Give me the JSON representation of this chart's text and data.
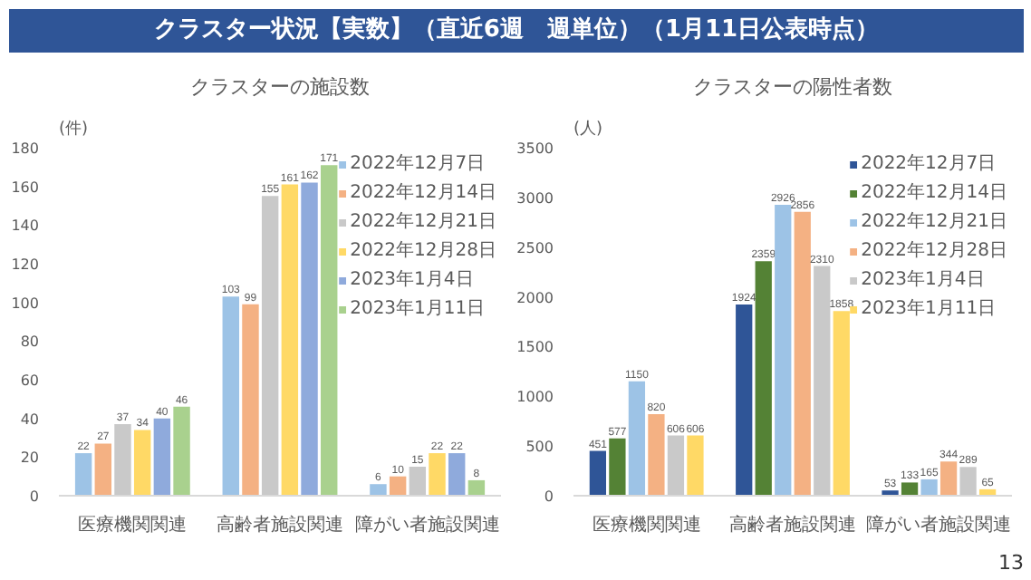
{
  "chart_data": [
    {
      "type": "bar",
      "title": "クラスターの施設数",
      "ylabel": "(件)",
      "annotations": [
        "クラスター状況【実数】（直近6週　週単位）（1月11日公表時点）"
      ],
      "categories": [
        "医療機関関連",
        "高齢者施設関連",
        "障がい者施設関連"
      ],
      "series": [
        {
          "name": "2022年12月7日",
          "color": "#9dc3e6",
          "values": [
            22,
            103,
            6
          ]
        },
        {
          "name": "2022年12月14日",
          "color": "#f4b183",
          "values": [
            27,
            99,
            10
          ]
        },
        {
          "name": "2022年12月21日",
          "color": "#c9c9c9",
          "values": [
            37,
            155,
            15
          ]
        },
        {
          "name": "2022年12月28日",
          "color": "#ffd966",
          "values": [
            34,
            161,
            22
          ]
        },
        {
          "name": "2023年1月4日",
          "color": "#8faadc",
          "values": [
            40,
            162,
            22
          ]
        },
        {
          "name": "2023年1月11日",
          "color": "#a9d18e",
          "values": [
            46,
            171,
            8
          ]
        }
      ],
      "ylim": [
        0,
        180
      ],
      "yticks": [
        0,
        20,
        40,
        60,
        80,
        100,
        120,
        140,
        160,
        180
      ],
      "data_labels": true,
      "legend": "top right",
      "grid": false
    },
    {
      "type": "bar",
      "title": "クラスターの陽性者数",
      "ylabel": "(人)",
      "annotations": [
        "13"
      ],
      "categories": [
        "医療機関関連",
        "高齢者施設関連",
        "障がい者施設関連"
      ],
      "series": [
        {
          "name": "2022年12月7日",
          "color": "#2f5597",
          "values": [
            451,
            1924,
            53
          ]
        },
        {
          "name": "2022年12月14日",
          "color": "#548235",
          "values": [
            577,
            2359,
            133
          ]
        },
        {
          "name": "2022年12月21日",
          "color": "#9dc3e6",
          "values": [
            1150,
            2926,
            165
          ]
        },
        {
          "name": "2022年12月28日",
          "color": "#f4b183",
          "values": [
            820,
            2856,
            344
          ]
        },
        {
          "name": "2023年1月4日",
          "color": "#c9c9c9",
          "values": [
            606,
            2310,
            289
          ]
        },
        {
          "name": "2023年1月11日",
          "color": "#ffd966",
          "values": [
            606,
            1858,
            65
          ]
        }
      ],
      "ylim": [
        0,
        3500
      ],
      "yticks": [
        0,
        500,
        1000,
        1500,
        2000,
        2500,
        3000,
        3500
      ],
      "data_labels": true,
      "legend": "top right",
      "grid": false
    }
  ]
}
